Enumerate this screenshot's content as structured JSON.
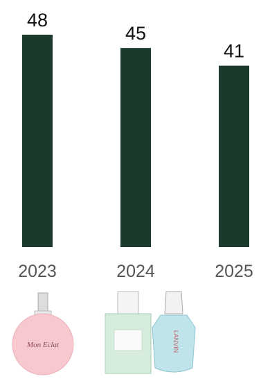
{
  "chart_data": {
    "type": "bar",
    "categories": [
      "2023",
      "2024",
      "2025"
    ],
    "values": [
      48,
      45,
      41
    ],
    "color": "#1c3a2b"
  },
  "product_labels": [
    "Mon Eclat",
    "LANVIN"
  ]
}
